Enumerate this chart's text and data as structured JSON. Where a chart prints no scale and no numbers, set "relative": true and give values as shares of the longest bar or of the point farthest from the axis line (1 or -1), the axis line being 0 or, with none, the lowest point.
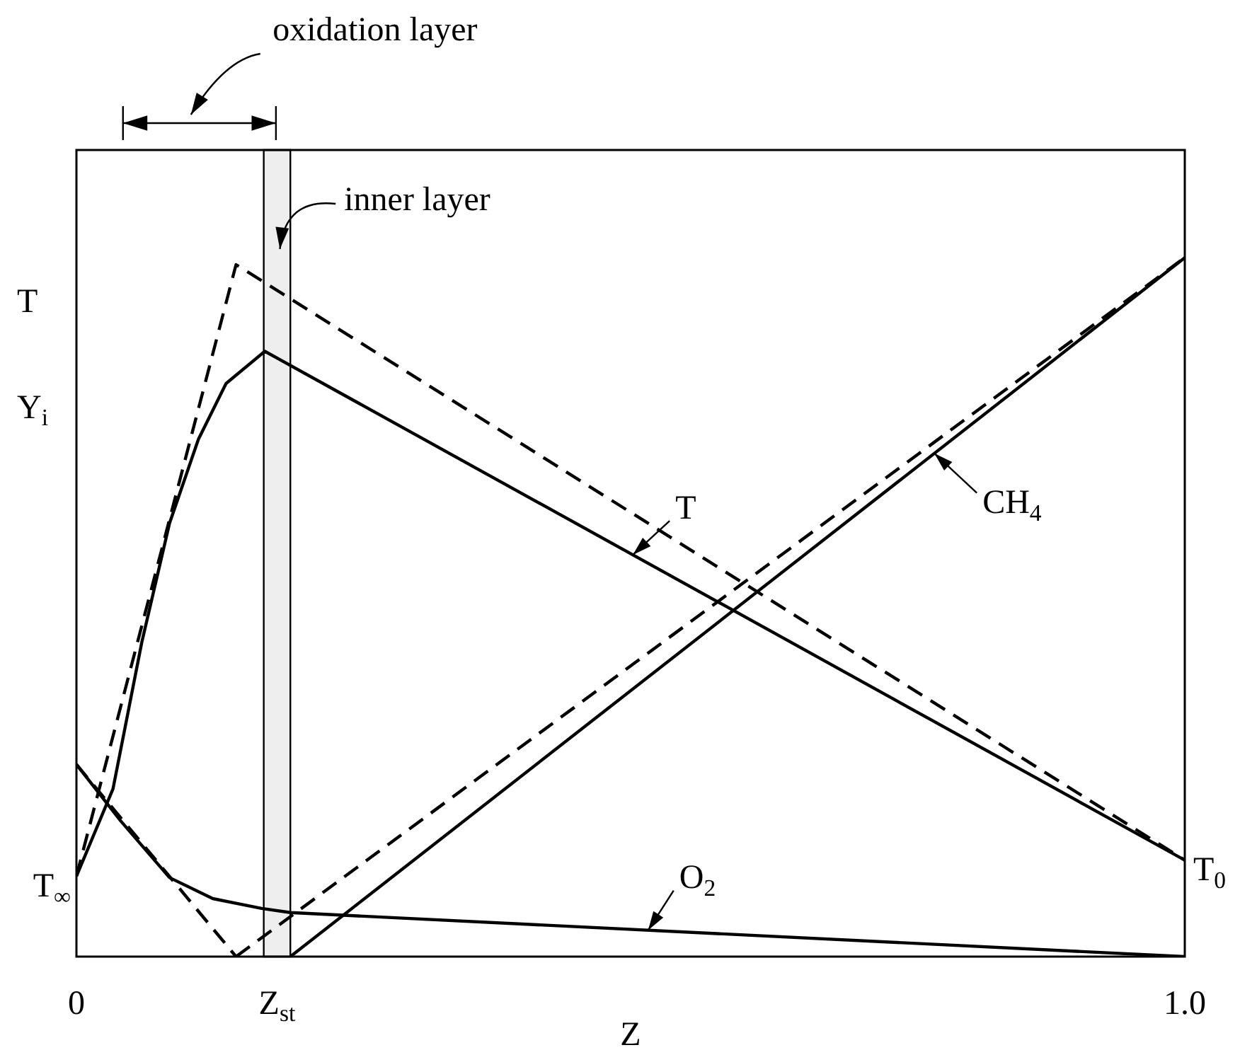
{
  "chart_data": {
    "type": "line",
    "relative": true,
    "xlabel": "Z",
    "xlim": [
      0,
      1
    ],
    "xticks": [
      0,
      {
        "value": 0.181,
        "label": "Z$_{st}$"
      },
      {
        "value": 1,
        "label": "1.0"
      }
    ],
    "marker": "none",
    "line_style": "solid",
    "series": [
      {
        "name": "T",
        "color": "#000000",
        "x": [
          0,
          0.033,
          0.059,
          0.084,
          0.11,
          0.135,
          0.17,
          1
        ],
        "values": [
          0.115,
          0.24,
          0.45,
          0.62,
          0.74,
          0.82,
          0.866,
          0.138
        ]
      },
      {
        "color": "#000000",
        "line_style": "dashed",
        "x": [
          0,
          0.144,
          1
        ],
        "values": [
          0.115,
          0.99,
          0.138
        ]
      },
      {
        "name": "CH$_{4}$",
        "color": "#000000",
        "x": [
          0.193,
          1
        ],
        "values": [
          0,
          1
        ]
      },
      {
        "color": "#000000",
        "line_style": "dashed",
        "x": [
          0.144,
          1
        ],
        "values": [
          0,
          1
        ]
      },
      {
        "name": "O$_{2}$",
        "color": "#000000",
        "x": [
          0,
          0.04,
          0.084,
          0.123,
          0.167,
          0.193,
          1
        ],
        "values": [
          0.275,
          0.194,
          0.113,
          0.083,
          0.069,
          0.063,
          0
        ]
      },
      {
        "color": "#000000",
        "line_style": "dashed",
        "x": [
          0,
          0.144
        ],
        "values": [
          0.275,
          0
        ]
      }
    ],
    "bands": [
      {
        "axis": "x",
        "from": 0.169,
        "to": 0.193,
        "label": "inner layer",
        "color": "#eeeeee"
      }
    ],
    "annotations": [
      "oxidation layer",
      "T",
      "Y$_{i}$",
      {
        "text": "T$_{∞}$",
        "x": 0,
        "y": 0.115
      },
      {
        "text": "T$_{0}$",
        "x": 1,
        "y": 0.138
      }
    ]
  }
}
